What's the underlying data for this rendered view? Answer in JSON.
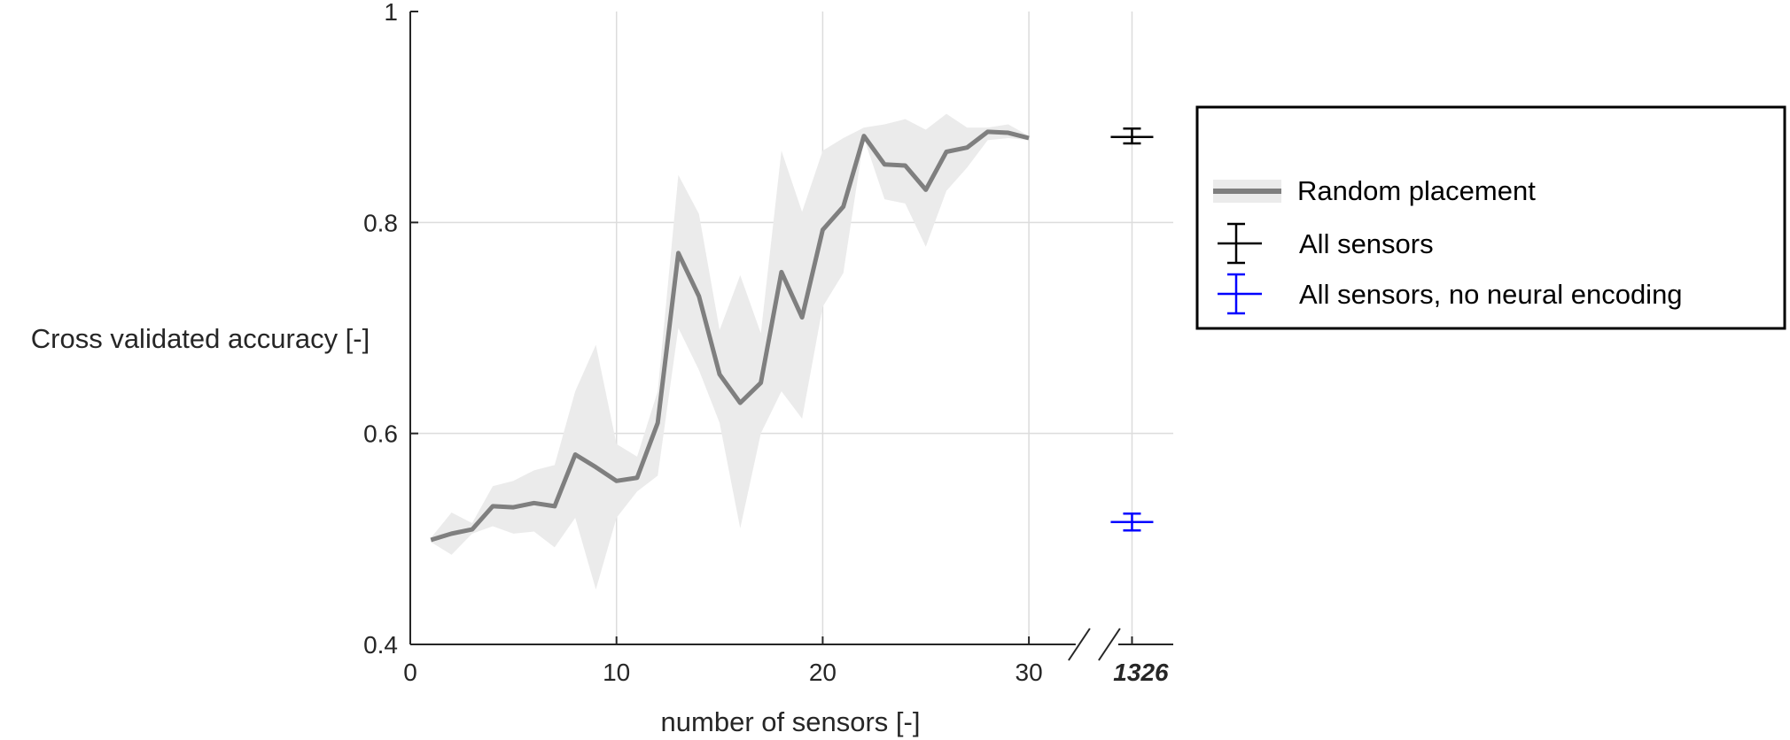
{
  "chart_data": {
    "type": "line",
    "xlabel": "number of sensors [-]",
    "ylabel": "Cross validated accuracy [-]",
    "ylim": [
      0.4,
      1.0
    ],
    "xlim": [
      0,
      37
    ],
    "grid": true,
    "legend_position": "right",
    "x_ticks": [
      {
        "value": 0,
        "label": "0"
      },
      {
        "value": 10,
        "label": "10"
      },
      {
        "value": 20,
        "label": "20"
      },
      {
        "value": 30,
        "label": "30"
      }
    ],
    "x_break_tick": {
      "value": 35,
      "label": "1326"
    },
    "y_ticks": [
      {
        "value": 0.4,
        "label": "0.4"
      },
      {
        "value": 0.6,
        "label": "0.6"
      },
      {
        "value": 0.8,
        "label": "0.8"
      },
      {
        "value": 1.0,
        "label": "1"
      }
    ],
    "series": [
      {
        "name": "Random placement",
        "x": [
          1,
          2,
          3,
          4,
          5,
          6,
          7,
          8,
          9,
          10,
          11,
          12,
          13,
          14,
          15,
          16,
          17,
          18,
          19,
          20,
          21,
          22,
          23,
          24,
          25,
          26,
          27,
          28,
          29,
          30
        ],
        "mean": [
          0.499,
          0.505,
          0.509,
          0.531,
          0.53,
          0.534,
          0.531,
          0.58,
          0.568,
          0.555,
          0.558,
          0.61,
          0.771,
          0.73,
          0.656,
          0.629,
          0.648,
          0.753,
          0.71,
          0.793,
          0.815,
          0.882,
          0.855,
          0.854,
          0.831,
          0.867,
          0.871,
          0.886,
          0.885,
          0.88
        ],
        "lower": [
          0.497,
          0.485,
          0.505,
          0.512,
          0.505,
          0.507,
          0.492,
          0.52,
          0.452,
          0.52,
          0.545,
          0.56,
          0.7,
          0.66,
          0.61,
          0.51,
          0.6,
          0.64,
          0.614,
          0.72,
          0.752,
          0.88,
          0.822,
          0.818,
          0.777,
          0.83,
          0.852,
          0.878,
          0.88,
          0.878
        ],
        "upper": [
          0.501,
          0.525,
          0.515,
          0.55,
          0.555,
          0.565,
          0.57,
          0.64,
          0.684,
          0.59,
          0.578,
          0.64,
          0.845,
          0.808,
          0.698,
          0.75,
          0.695,
          0.868,
          0.81,
          0.868,
          0.88,
          0.89,
          0.893,
          0.898,
          0.888,
          0.903,
          0.89,
          0.89,
          0.893,
          0.882
        ],
        "line_color": "#7f7f7f",
        "band_color": "#ebebeb"
      }
    ],
    "points": [
      {
        "name": "All sensors",
        "x_label": "1326",
        "y": 0.881,
        "err_low": 0.875,
        "err_high": 0.889,
        "color": "#000000"
      },
      {
        "name": "All sensors, no neural encoding",
        "x_label": "1326",
        "y": 0.516,
        "err_low": 0.508,
        "err_high": 0.524,
        "color": "#0000ff"
      }
    ]
  }
}
